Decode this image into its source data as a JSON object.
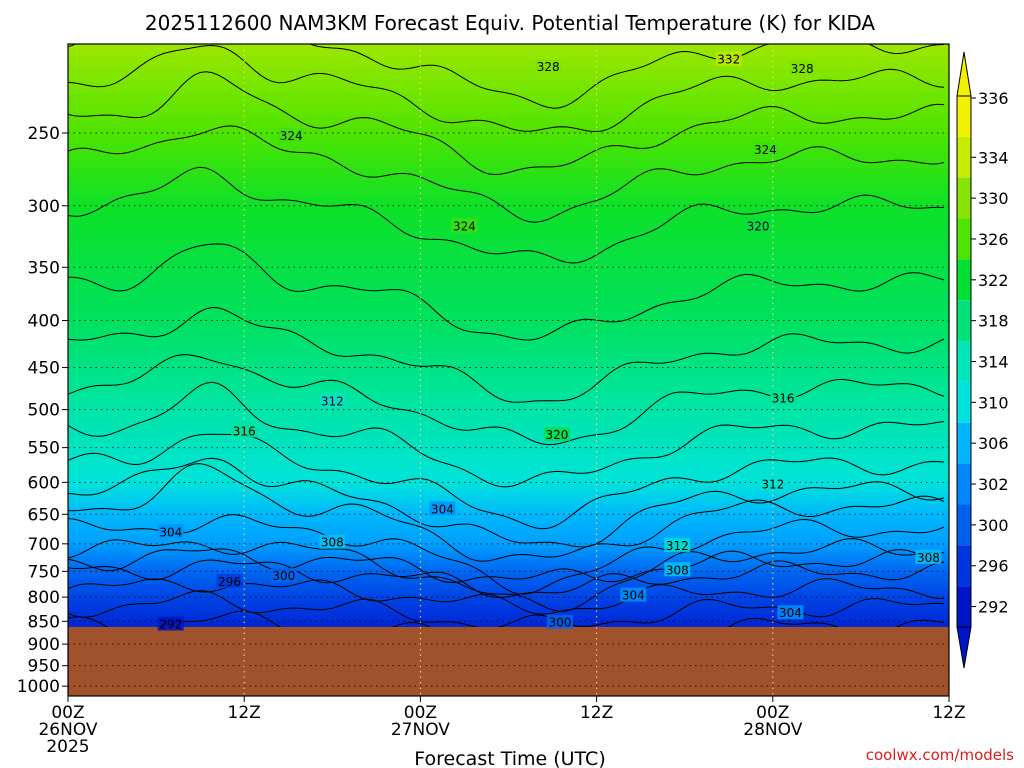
{
  "chart_data": {
    "type": "heatmap",
    "title": "2025112600  NAM3KM Forecast Equiv. Potential Temperature (K) for KIDA",
    "xlabel": "Forecast Time (UTC)",
    "ylabel": "",
    "credit": "coolwx.com/models",
    "y_axis": {
      "scale": "log",
      "ticks": [
        250,
        300,
        350,
        400,
        450,
        500,
        550,
        600,
        650,
        700,
        750,
        800,
        850,
        900,
        950,
        1000
      ],
      "tick_labels": [
        "250",
        "300",
        "350",
        "400",
        "450",
        "500",
        "550",
        "600",
        "650",
        "700",
        "750",
        "800",
        "850",
        "900",
        "950",
        "1000"
      ],
      "range": [
        1025,
        200
      ],
      "grid": true
    },
    "x_axis": {
      "range_hours": [
        0,
        60
      ],
      "ticks": [
        {
          "hour": 0,
          "lines": [
            "00Z",
            "26NOV",
            "2025"
          ]
        },
        {
          "hour": 12,
          "lines": [
            "12Z"
          ]
        },
        {
          "hour": 24,
          "lines": [
            "00Z",
            "27NOV"
          ]
        },
        {
          "hour": 36,
          "lines": [
            "12Z"
          ]
        },
        {
          "hour": 48,
          "lines": [
            "00Z",
            "28NOV"
          ]
        },
        {
          "hour": 60,
          "lines": [
            "12Z"
          ]
        }
      ],
      "grid": true
    },
    "colorbar": {
      "ticks": [
        "336",
        "334",
        "330",
        "326",
        "322",
        "318",
        "314",
        "310",
        "306",
        "302",
        "300",
        "296",
        "292"
      ],
      "colors": [
        "#f2f200",
        "#c6ec00",
        "#86e400",
        "#4ee400",
        "#00e030",
        "#00e278",
        "#00e6b8",
        "#00e2e2",
        "#00b4ff",
        "#0086ff",
        "#0060ee",
        "#0036e0",
        "#0014c8"
      ]
    },
    "ground_color": "#a0522d",
    "ground_pressure": 862,
    "contour_interval": 2,
    "field_mean_profile": [
      {
        "pressure": 200,
        "theta_e": 330
      },
      {
        "pressure": 250,
        "theta_e": 325
      },
      {
        "pressure": 300,
        "theta_e": 322
      },
      {
        "pressure": 400,
        "theta_e": 319
      },
      {
        "pressure": 500,
        "theta_e": 315
      },
      {
        "pressure": 600,
        "theta_e": 311
      },
      {
        "pressure": 650,
        "theta_e": 307
      },
      {
        "pressure": 700,
        "theta_e": 305
      },
      {
        "pressure": 750,
        "theta_e": 300
      },
      {
        "pressure": 800,
        "theta_e": 297
      },
      {
        "pressure": 860,
        "theta_e": 294
      }
    ],
    "contour_labels": [
      {
        "text": "328",
        "hour": 32.7,
        "pressure": 212
      },
      {
        "text": "332",
        "hour": 45,
        "pressure": 208
      },
      {
        "text": "328",
        "hour": 50,
        "pressure": 213
      },
      {
        "text": "324",
        "hour": 15.2,
        "pressure": 252
      },
      {
        "text": "324",
        "hour": 47.5,
        "pressure": 261
      },
      {
        "text": "324",
        "hour": 27,
        "pressure": 316
      },
      {
        "text": "320",
        "hour": 47,
        "pressure": 316
      },
      {
        "text": "316",
        "hour": 48.7,
        "pressure": 486
      },
      {
        "text": "312",
        "hour": 18,
        "pressure": 490
      },
      {
        "text": "316",
        "hour": 12,
        "pressure": 528
      },
      {
        "text": "320",
        "hour": 33.3,
        "pressure": 533
      },
      {
        "text": "312",
        "hour": 48,
        "pressure": 603
      },
      {
        "text": "304",
        "hour": 25.5,
        "pressure": 642
      },
      {
        "text": "304",
        "hour": 7,
        "pressure": 680
      },
      {
        "text": "308",
        "hour": 18,
        "pressure": 698
      },
      {
        "text": "312",
        "hour": 41.5,
        "pressure": 704
      },
      {
        "text": "308",
        "hour": 41.5,
        "pressure": 748
      },
      {
        "text": "308",
        "hour": 58.6,
        "pressure": 725
      },
      {
        "text": "300",
        "hour": 14.7,
        "pressure": 759
      },
      {
        "text": "296",
        "hour": 11,
        "pressure": 770
      },
      {
        "text": "304",
        "hour": 38.5,
        "pressure": 797
      },
      {
        "text": "304",
        "hour": 49.2,
        "pressure": 833
      },
      {
        "text": "292",
        "hour": 7,
        "pressure": 857
      },
      {
        "text": "300",
        "hour": 33.5,
        "pressure": 853
      }
    ]
  }
}
